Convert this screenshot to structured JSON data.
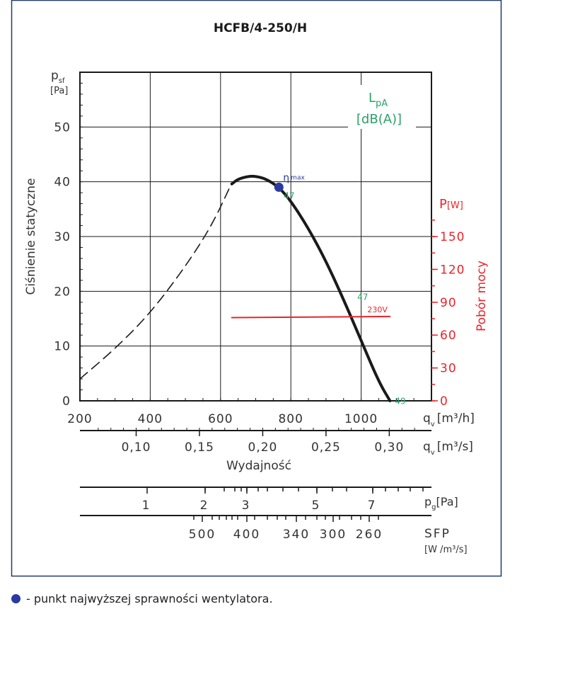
{
  "colors": {
    "curve": "#1a1a1a",
    "frame": "#1f3a6e",
    "point": "#2a3aa0",
    "noise": "#2aa06a",
    "power": "#e8242a"
  },
  "chart_data": {
    "type": "line",
    "title": "HCFB/4-250/H",
    "y_axis": {
      "label": "Ciśnienie statyczne",
      "symbol": "p",
      "symbol_sub": "sf",
      "unit": "[Pa]",
      "ylim": [
        0,
        60
      ],
      "ticks": [
        0,
        10,
        20,
        30,
        40,
        50
      ]
    },
    "x_axis": {
      "label": "Wydajność",
      "symbol": "q",
      "symbol_sub": "v",
      "unit_m3h": "[m³/h]",
      "unit_m3s": "[m³/s]",
      "xlim": [
        200,
        1200
      ],
      "ticks_m3h": [
        200,
        400,
        600,
        800,
        1000
      ],
      "ticks_m3s": [
        "0,10",
        "0,15",
        "0,20",
        "0,25",
        "0,30"
      ],
      "m3s_values": [
        0.1,
        0.15,
        0.2,
        0.25,
        0.3
      ]
    },
    "y2_axis": {
      "label": "Pobór mocy",
      "symbol": "P",
      "unit": "[W]",
      "ticks": [
        0,
        30,
        60,
        90,
        120,
        150
      ],
      "ylim": [
        0,
        300
      ]
    },
    "noise_label": {
      "symbol": "L",
      "symbol_sub": "pA",
      "unit": "[dB(A)]"
    },
    "series": [
      {
        "role": "unstable",
        "style": "dashed",
        "x": [
          200,
          300,
          400,
          500,
          575,
          630
        ],
        "y": [
          4,
          9.5,
          16,
          24.5,
          32,
          39.5
        ]
      },
      {
        "role": "fan-curve",
        "style": "solid",
        "x": [
          632,
          650,
          680,
          700,
          730,
          766,
          800,
          850,
          900,
          950,
          1000,
          1050,
          1082
        ],
        "y": [
          39.6,
          40.5,
          41,
          41,
          40.5,
          39,
          36.5,
          31.5,
          25.5,
          18.5,
          11,
          3.5,
          0
        ]
      },
      {
        "role": "power",
        "name": "230V",
        "style": "solid",
        "x": [
          632,
          1082
        ],
        "y": [
          76,
          77
        ]
      }
    ],
    "max_efficiency": {
      "x": 766,
      "y": 39,
      "label": "η",
      "label_sub": "max"
    },
    "noise_points": [
      {
        "x": 766,
        "y": 39,
        "value": "47"
      },
      {
        "x": 975,
        "y": 20.5,
        "value": "47"
      },
      {
        "x": 1082,
        "y": 1.5,
        "value": "49"
      }
    ],
    "pg_scale": {
      "symbol": "p",
      "symbol_sub": "g",
      "unit": "[Pa]",
      "labels": [
        "1",
        "2",
        "3",
        "5",
        "7"
      ]
    },
    "sfp_scale": {
      "symbol": "SFP",
      "unit": "[W /m³/s]",
      "labels": [
        "500",
        "400",
        "340",
        "300",
        "260"
      ]
    },
    "grid": true
  },
  "footnote": {
    "text": "- punkt najwyższej sprawności wentylatora."
  }
}
